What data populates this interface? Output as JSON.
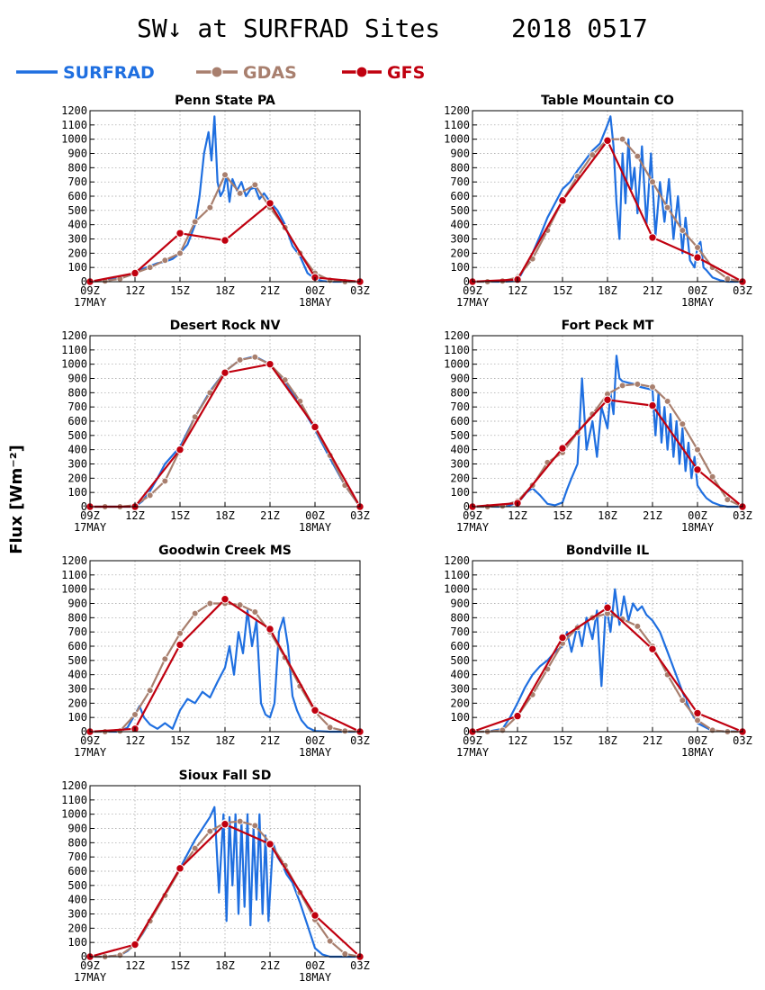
{
  "figure": {
    "title": "SW↓ at SURFRAD Sites",
    "date": "2018 0517",
    "ylabel": "Flux [Wm⁻²]"
  },
  "legend": [
    {
      "name": "SURFRAD",
      "color": "#1f6fe0",
      "marker": "none"
    },
    {
      "name": "GDAS",
      "color": "#a87f6e",
      "marker": "circle"
    },
    {
      "name": "GFS",
      "color": "#c0000f",
      "marker": "dot"
    }
  ],
  "axes": {
    "xlim_hours": [
      9,
      27
    ],
    "x_ticks": [
      {
        "h": 9,
        "label": "09Z",
        "date": "17MAY"
      },
      {
        "h": 12,
        "label": "12Z",
        "date": ""
      },
      {
        "h": 15,
        "label": "15Z",
        "date": ""
      },
      {
        "h": 18,
        "label": "18Z",
        "date": ""
      },
      {
        "h": 21,
        "label": "21Z",
        "date": ""
      },
      {
        "h": 24,
        "label": "00Z",
        "date": "18MAY"
      },
      {
        "h": 27,
        "label": "03Z",
        "date": ""
      }
    ],
    "ylim": [
      0,
      1200
    ],
    "y_ticks": [
      0,
      100,
      200,
      300,
      400,
      500,
      600,
      700,
      800,
      900,
      1000,
      1100,
      1200
    ],
    "grid": true
  },
  "chart_data": [
    {
      "type": "line",
      "title": "Penn State PA",
      "x_unit": "hour UTC (9 = 09Z 17MAY, 24 = 00Z 18MAY)",
      "series": [
        {
          "name": "SURFRAD",
          "x": [
            9,
            10,
            11,
            11.5,
            12,
            12.5,
            13,
            13.5,
            14,
            14.5,
            15,
            15.5,
            16,
            16.3,
            16.6,
            16.9,
            17.1,
            17.3,
            17.5,
            17.7,
            17.9,
            18.1,
            18.3,
            18.5,
            18.8,
            19.1,
            19.4,
            19.7,
            20,
            20.3,
            20.6,
            21,
            21.5,
            22,
            22.5,
            23,
            23.5,
            24,
            24.5,
            25,
            26,
            27
          ],
          "y": [
            0,
            10,
            25,
            40,
            60,
            90,
            110,
            130,
            140,
            160,
            200,
            260,
            400,
            600,
            900,
            1050,
            850,
            1160,
            700,
            600,
            640,
            750,
            560,
            720,
            640,
            700,
            600,
            650,
            660,
            580,
            620,
            560,
            500,
            400,
            250,
            180,
            60,
            20,
            5,
            0,
            0,
            0
          ]
        },
        {
          "name": "GDAS",
          "x": [
            9,
            10,
            11,
            12,
            13,
            14,
            15,
            16,
            17,
            18,
            19,
            20,
            21,
            22,
            23,
            24,
            25,
            26,
            27
          ],
          "y": [
            0,
            5,
            20,
            60,
            100,
            150,
            200,
            420,
            520,
            750,
            620,
            680,
            520,
            380,
            200,
            60,
            10,
            0,
            0
          ]
        },
        {
          "name": "GFS",
          "x": [
            9,
            12,
            15,
            18,
            21,
            24,
            27
          ],
          "y": [
            0,
            60,
            340,
            290,
            550,
            30,
            0
          ]
        }
      ]
    },
    {
      "type": "line",
      "title": "Table Mountain CO",
      "x_unit": "hour UTC (9 = 09Z 17MAY, 24 = 00Z 18MAY)",
      "series": [
        {
          "name": "SURFRAD",
          "x": [
            9,
            11,
            12,
            12.5,
            13,
            13.5,
            14,
            14.5,
            15,
            15.5,
            16,
            16.5,
            17,
            17.5,
            18,
            18.2,
            18.4,
            18.6,
            18.8,
            19,
            19.2,
            19.4,
            19.6,
            19.8,
            20,
            20.3,
            20.6,
            20.9,
            21.2,
            21.5,
            21.8,
            22.1,
            22.4,
            22.7,
            23,
            23.2,
            23.5,
            23.8,
            24,
            24.2,
            24.4,
            24.6,
            25,
            25.5,
            26,
            27
          ],
          "y": [
            0,
            0,
            5,
            100,
            200,
            320,
            450,
            550,
            650,
            700,
            780,
            850,
            920,
            970,
            1100,
            1160,
            950,
            550,
            300,
            900,
            550,
            1000,
            650,
            800,
            480,
            950,
            400,
            900,
            320,
            700,
            420,
            720,
            300,
            600,
            200,
            450,
            150,
            100,
            250,
            280,
            100,
            80,
            30,
            10,
            0,
            0
          ]
        },
        {
          "name": "GDAS",
          "x": [
            9,
            10,
            11,
            12,
            13,
            14,
            15,
            16,
            17,
            18,
            19,
            20,
            21,
            22,
            23,
            24,
            25,
            26,
            27
          ],
          "y": [
            0,
            0,
            5,
            30,
            160,
            360,
            570,
            740,
            890,
            1000,
            1000,
            880,
            700,
            520,
            360,
            240,
            100,
            20,
            0
          ]
        },
        {
          "name": "GFS",
          "x": [
            9,
            12,
            15,
            18,
            21,
            24,
            27
          ],
          "y": [
            0,
            15,
            570,
            990,
            310,
            170,
            0
          ]
        }
      ]
    },
    {
      "type": "line",
      "title": "Desert Rock NV",
      "x_unit": "hour UTC (9 = 09Z 17MAY, 24 = 00Z 18MAY)",
      "series": [
        {
          "name": "SURFRAD",
          "x": [
            9,
            10,
            11,
            12,
            12.5,
            13,
            13.5,
            14,
            15,
            16,
            17,
            18,
            19,
            20,
            21,
            22,
            23,
            24,
            25,
            26,
            27
          ],
          "y": [
            0,
            0,
            0,
            0,
            40,
            110,
            200,
            300,
            420,
            630,
            810,
            950,
            1030,
            1055,
            1000,
            880,
            720,
            540,
            340,
            150,
            0
          ]
        },
        {
          "name": "GDAS",
          "x": [
            9,
            10,
            11,
            12,
            13,
            14,
            15,
            16,
            17,
            18,
            19,
            20,
            21,
            22,
            23,
            24,
            25,
            26,
            27
          ],
          "y": [
            0,
            0,
            0,
            10,
            80,
            180,
            400,
            630,
            800,
            950,
            1030,
            1050,
            1000,
            890,
            740,
            550,
            360,
            150,
            0
          ]
        },
        {
          "name": "GFS",
          "x": [
            9,
            12,
            15,
            18,
            21,
            24,
            27
          ],
          "y": [
            0,
            0,
            400,
            940,
            1000,
            560,
            0
          ]
        }
      ]
    },
    {
      "type": "line",
      "title": "Fort Peck MT",
      "x_unit": "hour UTC (9 = 09Z 17MAY, 24 = 00Z 18MAY)",
      "series": [
        {
          "name": "SURFRAD",
          "x": [
            9,
            11,
            11.5,
            12,
            12.3,
            12.6,
            13,
            13.5,
            14,
            14.5,
            15,
            15.3,
            15.6,
            16,
            16.3,
            16.6,
            17,
            17.3,
            17.6,
            18,
            18.2,
            18.4,
            18.6,
            18.8,
            19,
            19.4,
            19.8,
            20.2,
            20.6,
            21,
            21.2,
            21.4,
            21.6,
            21.8,
            22,
            22.2,
            22.4,
            22.6,
            22.8,
            23,
            23.2,
            23.4,
            23.6,
            23.8,
            24,
            24.3,
            24.6,
            25,
            25.5,
            26,
            27
          ],
          "y": [
            0,
            0,
            10,
            30,
            60,
            100,
            130,
            80,
            20,
            10,
            30,
            120,
            200,
            300,
            900,
            400,
            600,
            350,
            700,
            550,
            800,
            650,
            1060,
            900,
            880,
            870,
            860,
            840,
            830,
            820,
            500,
            800,
            450,
            700,
            400,
            650,
            350,
            600,
            300,
            550,
            250,
            450,
            200,
            350,
            150,
            100,
            60,
            30,
            10,
            0,
            0
          ]
        },
        {
          "name": "GDAS",
          "x": [
            9,
            10,
            11,
            12,
            13,
            14,
            15,
            16,
            17,
            18,
            19,
            20,
            21,
            22,
            23,
            24,
            25,
            26,
            27
          ],
          "y": [
            0,
            0,
            5,
            40,
            150,
            310,
            380,
            520,
            650,
            790,
            850,
            860,
            840,
            740,
            580,
            400,
            210,
            50,
            0
          ]
        },
        {
          "name": "GFS",
          "x": [
            9,
            12,
            15,
            18,
            21,
            24,
            27
          ],
          "y": [
            0,
            25,
            410,
            750,
            710,
            260,
            0
          ]
        }
      ]
    },
    {
      "type": "line",
      "title": "Goodwin Creek MS",
      "x_unit": "hour UTC (9 = 09Z 17MAY, 24 = 00Z 18MAY)",
      "series": [
        {
          "name": "SURFRAD",
          "x": [
            9,
            11,
            11.5,
            12,
            12.3,
            12.6,
            13,
            13.5,
            14,
            14.5,
            15,
            15.5,
            16,
            16.5,
            17,
            17.5,
            18,
            18.3,
            18.6,
            18.9,
            19.2,
            19.5,
            19.8,
            20.1,
            20.4,
            20.7,
            21,
            21.3,
            21.6,
            21.9,
            22.2,
            22.5,
            22.8,
            23.1,
            23.5,
            24,
            25,
            27
          ],
          "y": [
            0,
            0,
            30,
            120,
            180,
            100,
            50,
            20,
            60,
            20,
            150,
            230,
            200,
            280,
            240,
            350,
            450,
            600,
            400,
            700,
            550,
            850,
            600,
            780,
            200,
            120,
            100,
            200,
            700,
            800,
            600,
            250,
            150,
            80,
            30,
            5,
            0,
            0
          ]
        },
        {
          "name": "GDAS",
          "x": [
            9,
            10,
            11,
            12,
            13,
            14,
            15,
            16,
            17,
            18,
            19,
            20,
            21,
            22,
            23,
            24,
            25,
            26,
            27
          ],
          "y": [
            0,
            0,
            5,
            120,
            290,
            510,
            690,
            830,
            900,
            900,
            890,
            840,
            700,
            520,
            320,
            140,
            30,
            5,
            0
          ]
        },
        {
          "name": "GFS",
          "x": [
            9,
            12,
            15,
            18,
            21,
            24,
            27
          ],
          "y": [
            0,
            20,
            610,
            930,
            720,
            150,
            0
          ]
        }
      ]
    },
    {
      "type": "line",
      "title": "Bondville IL",
      "x_unit": "hour UTC (9 = 09Z 17MAY, 24 = 00Z 18MAY)",
      "series": [
        {
          "name": "SURFRAD",
          "x": [
            9,
            10,
            11,
            11.5,
            12,
            12.5,
            13,
            13.5,
            14,
            14.5,
            15,
            15.3,
            15.6,
            16,
            16.3,
            16.6,
            17,
            17.3,
            17.6,
            17.9,
            18.2,
            18.5,
            18.8,
            19.1,
            19.4,
            19.7,
            20,
            20.3,
            20.6,
            21,
            21.5,
            22,
            22.5,
            23,
            23.5,
            24,
            25,
            27
          ],
          "y": [
            0,
            0,
            20,
            100,
            200,
            310,
            400,
            460,
            500,
            560,
            600,
            700,
            560,
            750,
            600,
            800,
            650,
            850,
            320,
            900,
            700,
            1000,
            750,
            950,
            780,
            900,
            850,
            880,
            820,
            780,
            700,
            560,
            420,
            280,
            150,
            60,
            5,
            0
          ]
        },
        {
          "name": "GDAS",
          "x": [
            9,
            10,
            11,
            12,
            13,
            14,
            15,
            16,
            17,
            18,
            19,
            20,
            21,
            22,
            23,
            24,
            25,
            26,
            27
          ],
          "y": [
            0,
            0,
            10,
            110,
            260,
            440,
            620,
            730,
            800,
            830,
            790,
            740,
            600,
            400,
            220,
            80,
            10,
            0,
            0
          ]
        },
        {
          "name": "GFS",
          "x": [
            9,
            12,
            15,
            18,
            21,
            24,
            27
          ],
          "y": [
            0,
            110,
            660,
            870,
            580,
            130,
            0
          ]
        }
      ]
    },
    {
      "type": "line",
      "title": "Sioux Fall SD",
      "x_unit": "hour UTC (9 = 09Z 17MAY, 24 = 00Z 18MAY)",
      "series": [
        {
          "name": "SURFRAD",
          "x": [
            9,
            10,
            11,
            11.5,
            12,
            12.5,
            13,
            13.5,
            14,
            14.5,
            15,
            15.5,
            16,
            16.5,
            17,
            17.3,
            17.6,
            17.9,
            18.1,
            18.3,
            18.5,
            18.7,
            18.9,
            19.1,
            19.3,
            19.5,
            19.7,
            19.9,
            20.1,
            20.3,
            20.5,
            20.7,
            20.9,
            21.2,
            21.5,
            21.8,
            22.1,
            22.5,
            23,
            23.5,
            24,
            24.5,
            25,
            26,
            27
          ],
          "y": [
            0,
            0,
            10,
            40,
            90,
            160,
            250,
            350,
            440,
            530,
            620,
            720,
            820,
            900,
            980,
            1050,
            450,
            1000,
            250,
            980,
            500,
            1000,
            300,
            950,
            350,
            1000,
            220,
            900,
            400,
            1000,
            300,
            850,
            250,
            800,
            700,
            650,
            580,
            520,
            380,
            220,
            60,
            15,
            0,
            0,
            0
          ]
        },
        {
          "name": "GDAS",
          "x": [
            9,
            10,
            11,
            12,
            13,
            14,
            15,
            16,
            17,
            18,
            19,
            20,
            21,
            22,
            23,
            24,
            25,
            26,
            27
          ],
          "y": [
            0,
            0,
            10,
            80,
            250,
            430,
            610,
            760,
            880,
            940,
            950,
            920,
            800,
            640,
            450,
            260,
            110,
            20,
            0
          ]
        },
        {
          "name": "GFS",
          "x": [
            9,
            12,
            15,
            18,
            21,
            24,
            27
          ],
          "y": [
            0,
            85,
            620,
            930,
            790,
            290,
            0
          ]
        }
      ]
    }
  ]
}
